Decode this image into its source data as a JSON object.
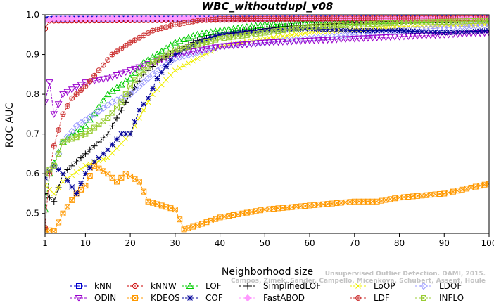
{
  "chart_data": {
    "type": "line",
    "title": "WBC_withoutdupl_v08",
    "xlabel": "Neighborhood size",
    "ylabel": "ROC AUC",
    "xlim": [
      1,
      100
    ],
    "ylim": [
      0.45,
      1.0
    ],
    "x_ticks": [
      1,
      10,
      20,
      30,
      40,
      50,
      60,
      70,
      80,
      90,
      100
    ],
    "y_ticks": [
      0.5,
      0.6,
      0.7,
      0.8,
      0.9,
      1.0
    ],
    "credit": [
      "Campos, Zimek, Sander, Campello, Micenkova, Schubert, Assent, Houle",
      "Unsupervised Outlier Detection. DAMI, 2015."
    ],
    "series": [
      {
        "name": "kNN",
        "color": "#0000cc",
        "marker": "square",
        "points": [
          [
            1,
            0.988
          ],
          [
            3,
            0.99
          ],
          [
            100,
            0.991
          ]
        ]
      },
      {
        "name": "kNNW",
        "color": "#cc0000",
        "marker": "circle",
        "points": [
          [
            1,
            0.965
          ],
          [
            2,
            0.985
          ],
          [
            100,
            0.99
          ]
        ]
      },
      {
        "name": "LOF",
        "color": "#00cc00",
        "marker": "triangle",
        "points": [
          [
            1,
            0.51
          ],
          [
            2,
            0.6
          ],
          [
            5,
            0.68
          ],
          [
            10,
            0.72
          ],
          [
            15,
            0.8
          ],
          [
            20,
            0.84
          ],
          [
            23,
            0.88
          ],
          [
            26,
            0.9
          ],
          [
            30,
            0.93
          ],
          [
            35,
            0.95
          ],
          [
            40,
            0.96
          ],
          [
            50,
            0.975
          ],
          [
            60,
            0.98
          ],
          [
            80,
            0.985
          ],
          [
            100,
            0.988
          ]
        ]
      },
      {
        "name": "SimplifiedLOF",
        "color": "#000000",
        "marker": "plus",
        "points": [
          [
            1,
            0.55
          ],
          [
            3,
            0.53
          ],
          [
            5,
            0.6
          ],
          [
            10,
            0.65
          ],
          [
            15,
            0.7
          ],
          [
            20,
            0.8
          ],
          [
            23,
            0.85
          ],
          [
            26,
            0.88
          ],
          [
            30,
            0.91
          ],
          [
            35,
            0.935
          ],
          [
            40,
            0.95
          ],
          [
            50,
            0.965
          ],
          [
            60,
            0.975
          ],
          [
            80,
            0.985
          ],
          [
            100,
            0.988
          ]
        ]
      },
      {
        "name": "LoOP",
        "color": "#eeee00",
        "marker": "x",
        "points": [
          [
            1,
            0.57
          ],
          [
            3,
            0.55
          ],
          [
            5,
            0.58
          ],
          [
            10,
            0.62
          ],
          [
            15,
            0.64
          ],
          [
            20,
            0.7
          ],
          [
            25,
            0.8
          ],
          [
            30,
            0.86
          ],
          [
            35,
            0.89
          ],
          [
            40,
            0.92
          ],
          [
            50,
            0.94
          ],
          [
            60,
            0.955
          ],
          [
            80,
            0.97
          ],
          [
            100,
            0.975
          ]
        ]
      },
      {
        "name": "LDOF",
        "color": "#9999ff",
        "marker": "diamond",
        "points": [
          [
            1,
            0.6
          ],
          [
            3,
            0.62
          ],
          [
            5,
            0.68
          ],
          [
            8,
            0.72
          ],
          [
            12,
            0.75
          ],
          [
            16,
            0.78
          ],
          [
            20,
            0.8
          ],
          [
            25,
            0.85
          ],
          [
            30,
            0.89
          ],
          [
            40,
            0.92
          ],
          [
            50,
            0.93
          ],
          [
            60,
            0.94
          ],
          [
            80,
            0.96
          ],
          [
            100,
            0.975
          ]
        ]
      },
      {
        "name": "ODIN",
        "color": "#9900cc",
        "marker": "triangle-down",
        "points": [
          [
            1,
            0.78
          ],
          [
            2,
            0.83
          ],
          [
            3,
            0.75
          ],
          [
            5,
            0.8
          ],
          [
            10,
            0.83
          ],
          [
            15,
            0.84
          ],
          [
            20,
            0.86
          ],
          [
            25,
            0.88
          ],
          [
            30,
            0.9
          ],
          [
            40,
            0.92
          ],
          [
            50,
            0.93
          ],
          [
            60,
            0.935
          ],
          [
            70,
            0.94
          ],
          [
            80,
            0.945
          ],
          [
            90,
            0.95
          ],
          [
            100,
            0.955
          ]
        ]
      },
      {
        "name": "KDEOS",
        "color": "#ff9900",
        "marker": "square-x",
        "points": [
          [
            1,
            0.46
          ],
          [
            3,
            0.455
          ],
          [
            5,
            0.5
          ],
          [
            8,
            0.55
          ],
          [
            10,
            0.57
          ],
          [
            12,
            0.62
          ],
          [
            15,
            0.6
          ],
          [
            17,
            0.58
          ],
          [
            19,
            0.6
          ],
          [
            22,
            0.58
          ],
          [
            24,
            0.53
          ],
          [
            27,
            0.52
          ],
          [
            30,
            0.51
          ],
          [
            32,
            0.46
          ],
          [
            35,
            0.47
          ],
          [
            40,
            0.49
          ],
          [
            45,
            0.5
          ],
          [
            50,
            0.51
          ],
          [
            60,
            0.52
          ],
          [
            70,
            0.53
          ],
          [
            75,
            0.53
          ],
          [
            80,
            0.54
          ],
          [
            90,
            0.55
          ],
          [
            100,
            0.575
          ]
        ]
      },
      {
        "name": "COF",
        "color": "#000099",
        "marker": "star",
        "points": [
          [
            1,
            0.59
          ],
          [
            3,
            0.62
          ],
          [
            5,
            0.6
          ],
          [
            8,
            0.55
          ],
          [
            10,
            0.6
          ],
          [
            12,
            0.63
          ],
          [
            15,
            0.66
          ],
          [
            18,
            0.7
          ],
          [
            20,
            0.7
          ],
          [
            22,
            0.76
          ],
          [
            24,
            0.79
          ],
          [
            26,
            0.84
          ],
          [
            28,
            0.87
          ],
          [
            30,
            0.9
          ],
          [
            35,
            0.93
          ],
          [
            40,
            0.95
          ],
          [
            50,
            0.96
          ],
          [
            60,
            0.965
          ],
          [
            70,
            0.96
          ],
          [
            80,
            0.96
          ],
          [
            90,
            0.955
          ],
          [
            100,
            0.96
          ]
        ]
      },
      {
        "name": "FastABOD",
        "color": "#ff99ff",
        "marker": "diamond-filled",
        "points": [
          [
            1,
            0.985
          ],
          [
            3,
            0.99
          ],
          [
            100,
            0.992
          ]
        ]
      },
      {
        "name": "LDF",
        "color": "#cc3333",
        "marker": "circle-plus",
        "points": [
          [
            1,
            0.465
          ],
          [
            2,
            0.6
          ],
          [
            3,
            0.67
          ],
          [
            5,
            0.75
          ],
          [
            7,
            0.79
          ],
          [
            10,
            0.82
          ],
          [
            13,
            0.86
          ],
          [
            16,
            0.9
          ],
          [
            20,
            0.93
          ],
          [
            25,
            0.96
          ],
          [
            30,
            0.975
          ],
          [
            35,
            0.985
          ],
          [
            40,
            0.99
          ],
          [
            100,
            0.992
          ]
        ]
      },
      {
        "name": "INFLO",
        "color": "#99cc33",
        "marker": "square-x",
        "points": [
          [
            1,
            0.6
          ],
          [
            3,
            0.62
          ],
          [
            5,
            0.68
          ],
          [
            10,
            0.7
          ],
          [
            15,
            0.74
          ],
          [
            18,
            0.78
          ],
          [
            20,
            0.82
          ],
          [
            22,
            0.85
          ],
          [
            25,
            0.88
          ],
          [
            30,
            0.91
          ],
          [
            40,
            0.94
          ],
          [
            50,
            0.955
          ],
          [
            60,
            0.97
          ],
          [
            80,
            0.98
          ],
          [
            100,
            0.985
          ]
        ]
      }
    ]
  }
}
